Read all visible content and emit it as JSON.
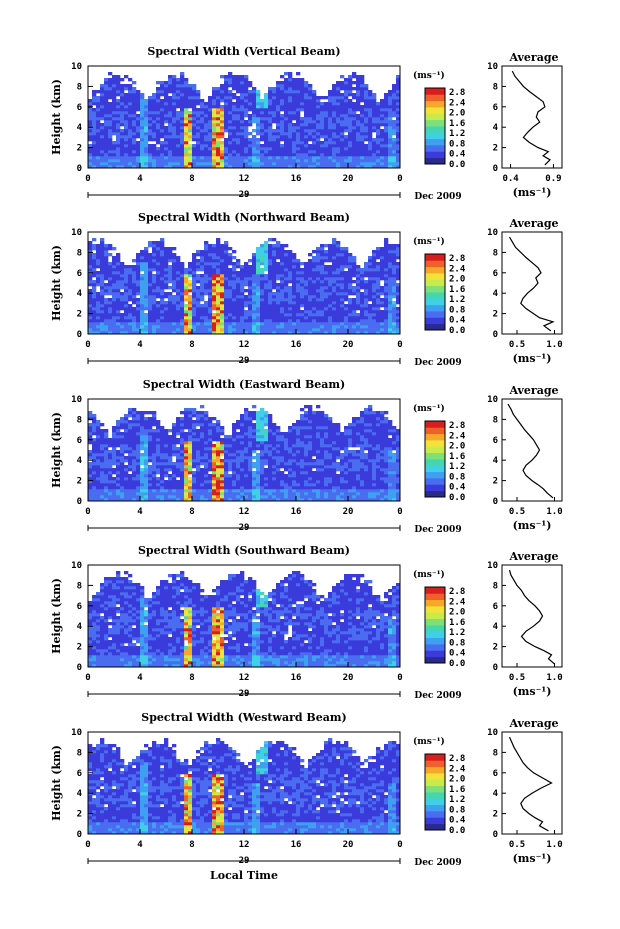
{
  "figure": {
    "avg_title": "Average",
    "time_xlabel": "Local Time",
    "height_ylabel": "Height (km)",
    "unit_label": "(ms⁻¹)",
    "date_label": "Dec 2009",
    "day_label": "29",
    "colorbar_ticks": [
      "2.8",
      "2.4",
      "2.0",
      "1.6",
      "1.2",
      "0.8",
      "0.4",
      "0.0"
    ]
  },
  "chart_data": [
    {
      "type": "heatmap",
      "title": "Spectral Width (Vertical Beam)",
      "ylabel": "Height (km)",
      "x_ticks": [
        "0",
        "4",
        "8",
        "12",
        "16",
        "20",
        "0"
      ],
      "y_ticks": [
        "0",
        "2",
        "4",
        "6",
        "8",
        "10"
      ],
      "xlim": [
        0,
        24
      ],
      "ylim": [
        0,
        10
      ],
      "colorbar": {
        "unit": "(ms⁻¹)",
        "range": [
          0.0,
          3.0
        ]
      },
      "profile": {
        "title": "Average",
        "xlabel": "(ms⁻¹)",
        "x_ticks": [
          "0.4",
          "0.9"
        ],
        "xlim": [
          0.3,
          1.0
        ],
        "ylim": [
          0,
          10
        ],
        "height_km": [
          0.3,
          0.8,
          1.2,
          1.6,
          2.0,
          2.5,
          3.0,
          3.5,
          4.0,
          4.5,
          5.0,
          5.5,
          6.0,
          6.5,
          7.0,
          7.5,
          8.0,
          8.5,
          9.0,
          9.5
        ],
        "width": [
          0.8,
          0.86,
          0.78,
          0.84,
          0.72,
          0.62,
          0.55,
          0.6,
          0.66,
          0.74,
          0.7,
          0.72,
          0.8,
          0.78,
          0.7,
          0.62,
          0.55,
          0.5,
          0.45,
          0.42
        ]
      }
    },
    {
      "type": "heatmap",
      "title": "Spectral Width (Northward Beam)",
      "ylabel": "Height (km)",
      "x_ticks": [
        "0",
        "4",
        "8",
        "12",
        "16",
        "20",
        "0"
      ],
      "y_ticks": [
        "0",
        "2",
        "4",
        "6",
        "8",
        "10"
      ],
      "xlim": [
        0,
        24
      ],
      "ylim": [
        0,
        10
      ],
      "colorbar": {
        "unit": "(ms⁻¹)",
        "range": [
          0.0,
          3.0
        ]
      },
      "profile": {
        "title": "Average",
        "xlabel": "(ms⁻¹)",
        "x_ticks": [
          "0.5",
          "1.0"
        ],
        "xlim": [
          0.3,
          1.1
        ],
        "ylim": [
          0,
          10
        ],
        "height_km": [
          0.3,
          0.8,
          1.2,
          1.6,
          2.0,
          2.5,
          3.0,
          3.5,
          4.0,
          4.5,
          5.0,
          5.5,
          6.0,
          6.5,
          7.0,
          7.5,
          8.0,
          8.5,
          9.0,
          9.5
        ],
        "width": [
          0.95,
          0.86,
          0.98,
          0.8,
          0.72,
          0.62,
          0.55,
          0.58,
          0.64,
          0.72,
          0.78,
          0.75,
          0.82,
          0.78,
          0.7,
          0.62,
          0.55,
          0.48,
          0.44,
          0.4
        ]
      }
    },
    {
      "type": "heatmap",
      "title": "Spectral Width (Eastward Beam)",
      "ylabel": "Height (km)",
      "x_ticks": [
        "0",
        "4",
        "8",
        "12",
        "16",
        "20",
        "0"
      ],
      "y_ticks": [
        "0",
        "2",
        "4",
        "6",
        "8",
        "10"
      ],
      "xlim": [
        0,
        24
      ],
      "ylim": [
        0,
        10
      ],
      "colorbar": {
        "unit": "(ms⁻¹)",
        "range": [
          0.0,
          3.0
        ]
      },
      "profile": {
        "title": "Average",
        "xlabel": "(ms⁻¹)",
        "x_ticks": [
          "0.5",
          "1.0"
        ],
        "xlim": [
          0.3,
          1.1
        ],
        "ylim": [
          0,
          10
        ],
        "height_km": [
          0.3,
          0.8,
          1.2,
          1.6,
          2.0,
          2.5,
          3.0,
          3.5,
          4.0,
          4.5,
          5.0,
          5.5,
          6.0,
          6.5,
          7.0,
          7.5,
          8.0,
          8.5,
          9.0,
          9.5
        ],
        "width": [
          0.98,
          0.9,
          0.85,
          0.78,
          0.7,
          0.62,
          0.58,
          0.62,
          0.7,
          0.76,
          0.8,
          0.76,
          0.72,
          0.66,
          0.6,
          0.55,
          0.5,
          0.45,
          0.42,
          0.38
        ]
      }
    },
    {
      "type": "heatmap",
      "title": "Spectral Width (Southward Beam)",
      "ylabel": "Height (km)",
      "x_ticks": [
        "0",
        "4",
        "8",
        "12",
        "16",
        "20",
        "0"
      ],
      "y_ticks": [
        "0",
        "2",
        "4",
        "6",
        "8",
        "10"
      ],
      "xlim": [
        0,
        24
      ],
      "ylim": [
        0,
        10
      ],
      "colorbar": {
        "unit": "(ms⁻¹)",
        "range": [
          0.0,
          3.0
        ]
      },
      "profile": {
        "title": "Average",
        "xlabel": "(ms⁻¹)",
        "x_ticks": [
          "0.5",
          "1.0"
        ],
        "xlim": [
          0.3,
          1.1
        ],
        "ylim": [
          0,
          10
        ],
        "height_km": [
          0.3,
          0.8,
          1.2,
          1.6,
          2.0,
          2.5,
          3.0,
          3.5,
          4.0,
          4.5,
          5.0,
          5.5,
          6.0,
          6.5,
          7.0,
          7.5,
          8.0,
          8.5,
          9.0,
          9.5
        ],
        "width": [
          1.0,
          0.92,
          0.96,
          0.86,
          0.74,
          0.62,
          0.56,
          0.62,
          0.72,
          0.8,
          0.84,
          0.8,
          0.74,
          0.66,
          0.6,
          0.56,
          0.5,
          0.46,
          0.42,
          0.4
        ]
      }
    },
    {
      "type": "heatmap",
      "title": "Spectral Width (Westward Beam)",
      "ylabel": "Height (km)",
      "x_ticks": [
        "0",
        "4",
        "8",
        "12",
        "16",
        "20",
        "0"
      ],
      "y_ticks": [
        "0",
        "2",
        "4",
        "6",
        "8",
        "10"
      ],
      "xlim": [
        0,
        24
      ],
      "ylim": [
        0,
        10
      ],
      "colorbar": {
        "unit": "(ms⁻¹)",
        "range": [
          0.0,
          3.0
        ]
      },
      "profile": {
        "title": "Average",
        "xlabel": "(ms⁻¹)",
        "x_ticks": [
          "0.5",
          "1.0"
        ],
        "xlim": [
          0.3,
          1.1
        ],
        "ylim": [
          0,
          10
        ],
        "height_km": [
          0.3,
          0.8,
          1.2,
          1.6,
          2.0,
          2.5,
          3.0,
          3.5,
          4.0,
          4.5,
          5.0,
          5.5,
          6.0,
          6.5,
          7.0,
          7.5,
          8.0,
          8.5,
          9.0,
          9.5
        ],
        "width": [
          0.92,
          0.8,
          0.84,
          0.74,
          0.66,
          0.58,
          0.55,
          0.6,
          0.7,
          0.82,
          0.96,
          0.84,
          0.72,
          0.64,
          0.58,
          0.54,
          0.5,
          0.46,
          0.43,
          0.4
        ]
      }
    }
  ]
}
